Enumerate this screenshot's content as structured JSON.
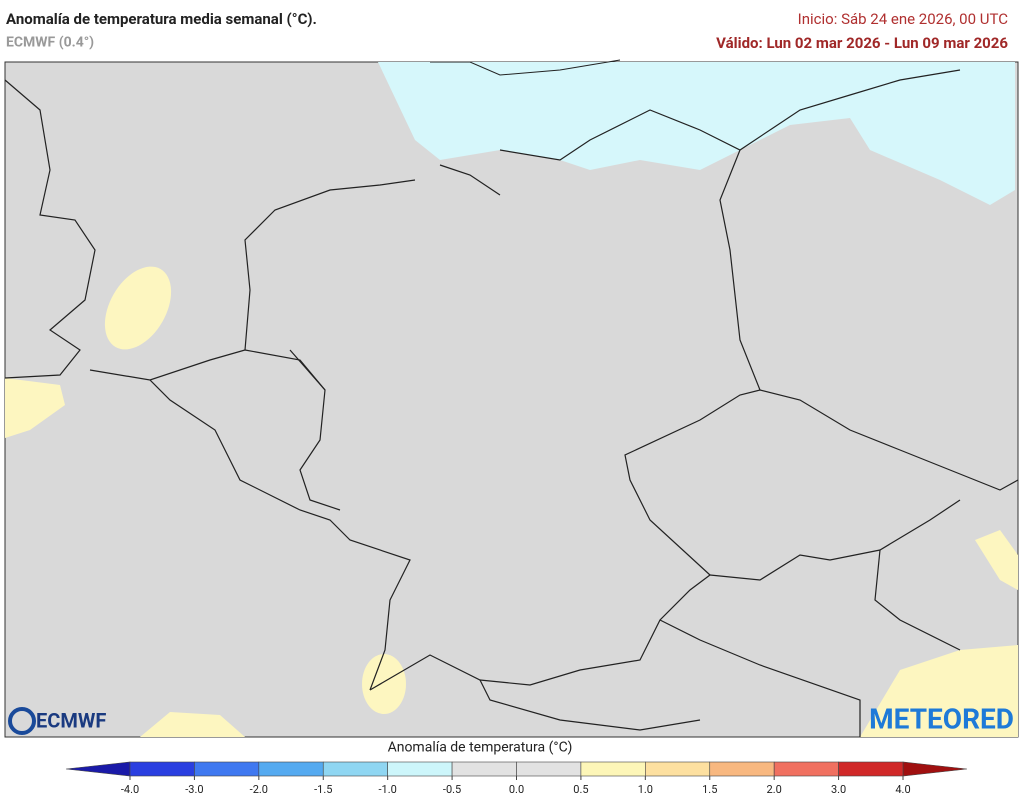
{
  "header": {
    "title": "Anomalía de temperatura media semanal (°C).",
    "model": "ECMWF (0.4°)",
    "init": "Inicio: Sáb 24 ene 2026, 00 UTC",
    "valid": "Válido: Lun 02 mar 2026 - Lun 09 mar 2026"
  },
  "logos": {
    "left": "ECMWF",
    "right": "METEORED"
  },
  "colorbar": {
    "title": "Anomalía de temperatura (°C)",
    "ticks": [
      {
        "value": -4,
        "label": "-4.0"
      },
      {
        "value": -3,
        "label": "-3.0"
      },
      {
        "value": -2,
        "label": "-2.0"
      },
      -1.5,
      {
        "value": -1,
        "label": "-1.0"
      },
      -0.5,
      {
        "value": 0,
        "label": "0.0"
      },
      0.5,
      {
        "value": 1,
        "label": "1.0"
      },
      1.5,
      {
        "value": 2,
        "label": "2.0"
      },
      {
        "value": 3,
        "label": "3.0"
      },
      {
        "value": 4,
        "label": "4.0"
      }
    ],
    "colors": [
      "#2a3fe0",
      "#3f78f0",
      "#55aaf0",
      "#8fd6f2",
      "#cdf6fb",
      "#e2e2e2",
      "#e2e2e2",
      "#fdf6b8",
      "#fde0a0",
      "#f8b880",
      "#f07060",
      "#d02828"
    ],
    "low_color": "#1a1aa8",
    "high_color": "#a01010"
  }
}
